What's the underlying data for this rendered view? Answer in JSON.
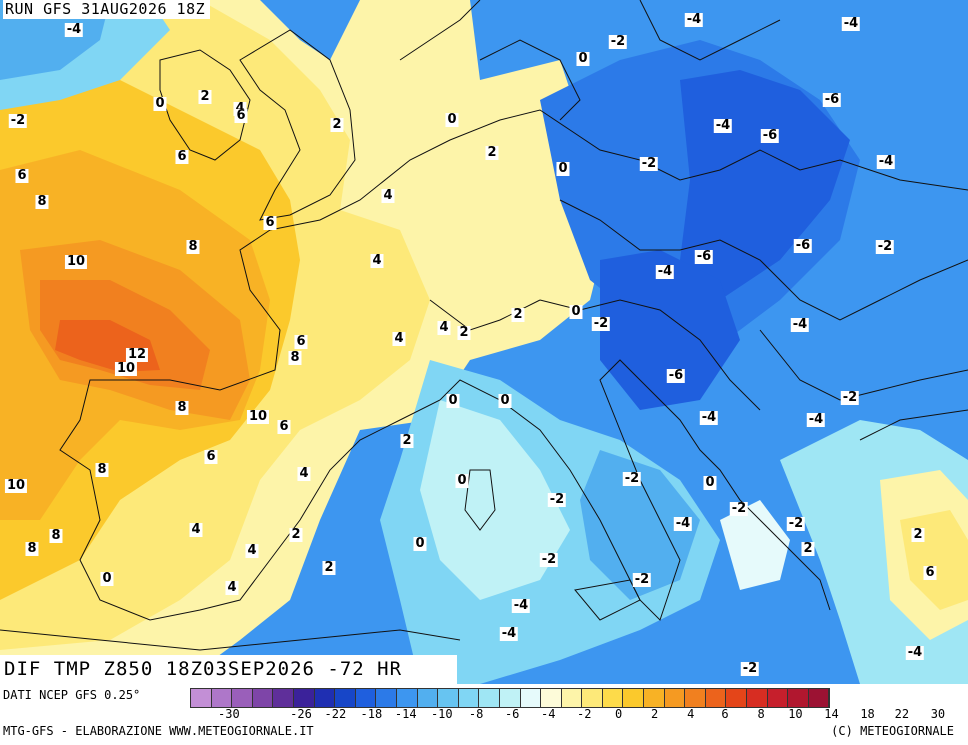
{
  "run_label": "RUN GFS 31AUG2026 18Z",
  "map_title": "DIF TMP Z850 18Z03SEP2026 -72 HR",
  "source": "DATI NCEP GFS 0.25°",
  "footer_left": "MTG-GFS - ELABORAZIONE WWW.METEOGIORNALE.IT",
  "footer_right": "(C) METEOGIORNALE",
  "legend": {
    "colors": [
      "#c38fd6",
      "#ae77c9",
      "#9a5fba",
      "#7e45a8",
      "#5f2f9a",
      "#3b229a",
      "#1f2fb2",
      "#1746c8",
      "#1f5fde",
      "#2c7ae8",
      "#3d96f0",
      "#52afef",
      "#67c4f1",
      "#80d6f4",
      "#9fe6f4",
      "#c0f2f6",
      "#e6fafb",
      "#fdfbd9",
      "#fdf4a9",
      "#fde979",
      "#fddb4a",
      "#fbc92c",
      "#f8b225",
      "#f59a22",
      "#f1801f",
      "#ec631c",
      "#e44519",
      "#d72d22",
      "#c61f2c",
      "#b1172f",
      "#9c1233"
    ],
    "tick_labels": [
      "-30",
      "-26",
      "-22",
      "-18",
      "-14",
      "-10",
      "-8",
      "-6",
      "-4",
      "-2",
      "0",
      "2",
      "4",
      "6",
      "8",
      "10",
      "14",
      "18",
      "22",
      "30"
    ]
  },
  "isoline_labels": [
    {
      "text": "-4",
      "zone": "north-atlantic"
    },
    {
      "text": "-2",
      "zone": "atlantic"
    },
    {
      "text": "0",
      "zone": "ireland"
    },
    {
      "text": "2",
      "zone": "ireland"
    },
    {
      "text": "4",
      "zone": "scotland"
    },
    {
      "text": "6",
      "zone": "wales"
    },
    {
      "text": "2",
      "zone": "england"
    },
    {
      "text": "0",
      "zone": "north-sea"
    },
    {
      "text": "2",
      "zone": "denmark"
    },
    {
      "text": "0",
      "zone": "baltic"
    },
    {
      "text": "-2",
      "zone": "scandinavia"
    },
    {
      "text": "-4",
      "zone": "sweden"
    },
    {
      "text": "-4",
      "zone": "finland"
    },
    {
      "text": "6",
      "zone": "atlantic"
    },
    {
      "text": "8",
      "zone": "atlantic"
    },
    {
      "text": "6",
      "zone": "channel"
    },
    {
      "text": "4",
      "zone": "belgium"
    },
    {
      "text": "6",
      "zone": "brittany"
    },
    {
      "text": "8",
      "zone": "biscay"
    },
    {
      "text": "10",
      "zone": "biscay"
    },
    {
      "text": "4",
      "zone": "france"
    },
    {
      "text": "0",
      "zone": "germany"
    },
    {
      "text": "-2",
      "zone": "poland"
    },
    {
      "text": "-4",
      "zone": "poland"
    },
    {
      "text": "-6",
      "zone": "belarus"
    },
    {
      "text": "-6",
      "zone": "russia"
    },
    {
      "text": "-4",
      "zone": "russia"
    },
    {
      "text": "-2",
      "zone": "ukraine"
    },
    {
      "text": "-6",
      "zone": "ukraine"
    },
    {
      "text": "-4",
      "zone": "slovakia"
    },
    {
      "text": "-6",
      "zone": "hungary"
    },
    {
      "text": "-4",
      "zone": "romania"
    },
    {
      "text": "-2",
      "zone": "alps"
    },
    {
      "text": "0",
      "zone": "alps"
    },
    {
      "text": "2",
      "zone": "switzerland"
    },
    {
      "text": "4",
      "zone": "switzerland"
    },
    {
      "text": "2",
      "zone": "alps"
    },
    {
      "text": "4",
      "zone": "central-france"
    },
    {
      "text": "12",
      "zone": "north-spain"
    },
    {
      "text": "10",
      "zone": "north-spain"
    },
    {
      "text": "8",
      "zone": "pyrenees"
    },
    {
      "text": "6",
      "zone": "south-france"
    },
    {
      "text": "8",
      "zone": "spain"
    },
    {
      "text": "10",
      "zone": "pyrenees"
    },
    {
      "text": "6",
      "zone": "gulf-of-lion"
    },
    {
      "text": "6",
      "zone": "spain"
    },
    {
      "text": "4",
      "zone": "catalonia"
    },
    {
      "text": "2",
      "zone": "ligurian-sea"
    },
    {
      "text": "0",
      "zone": "liguria"
    },
    {
      "text": "0",
      "zone": "tuscany"
    },
    {
      "text": "-6",
      "zone": "balkans"
    },
    {
      "text": "-4",
      "zone": "balkans"
    },
    {
      "text": "-4",
      "zone": "serbia"
    },
    {
      "text": "-2",
      "zone": "bulgaria"
    },
    {
      "text": "10",
      "zone": "portugal"
    },
    {
      "text": "8",
      "zone": "portugal"
    },
    {
      "text": "8",
      "zone": "portugal"
    },
    {
      "text": "8",
      "zone": "portugal"
    },
    {
      "text": "4",
      "zone": "spain"
    },
    {
      "text": "4",
      "zone": "spain"
    },
    {
      "text": "2",
      "zone": "spain"
    },
    {
      "text": "4",
      "zone": "spain"
    },
    {
      "text": "0",
      "zone": "sardinia"
    },
    {
      "text": "0",
      "zone": "italy"
    },
    {
      "text": "-2",
      "zone": "adriatic"
    },
    {
      "text": "-2",
      "zone": "albania"
    },
    {
      "text": "0",
      "zone": "greece"
    },
    {
      "text": "-2",
      "zone": "italy"
    },
    {
      "text": "-4",
      "zone": "greece"
    },
    {
      "text": "-2",
      "zone": "greece"
    },
    {
      "text": "2",
      "zone": "turkey"
    },
    {
      "text": "2",
      "zone": "turkey"
    },
    {
      "text": "6",
      "zone": "andalusia"
    },
    {
      "text": "2",
      "zone": "andalusia"
    },
    {
      "text": "0",
      "zone": "balearic"
    },
    {
      "text": "-2",
      "zone": "tyrrhenian"
    },
    {
      "text": "-2",
      "zone": "tyrrhenian"
    },
    {
      "text": "-4",
      "zone": "ionian"
    },
    {
      "text": "-4",
      "zone": "sicily"
    },
    {
      "text": "-2",
      "zone": "tunisia"
    },
    {
      "text": "-4",
      "zone": "libya"
    },
    {
      "text": "0",
      "zone": "aegean"
    },
    {
      "text": "2",
      "zone": "algeria"
    }
  ]
}
